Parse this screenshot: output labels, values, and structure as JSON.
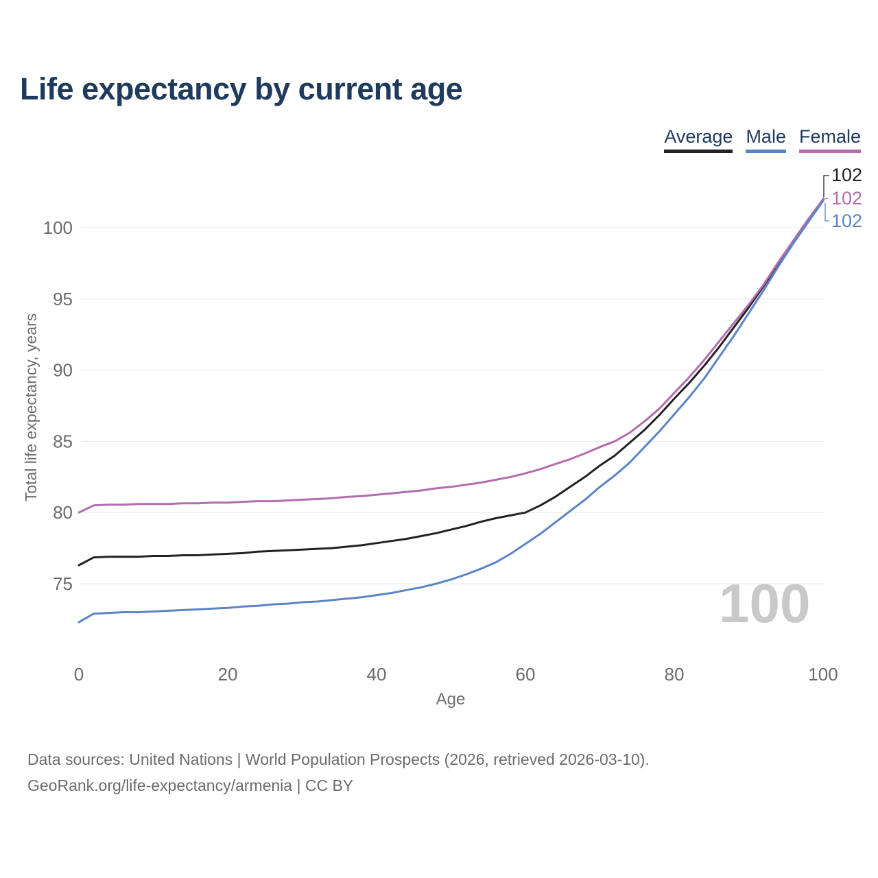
{
  "title": "Life expectancy by current age",
  "legend": [
    {
      "label": "Average",
      "color": "#222222"
    },
    {
      "label": "Male",
      "color": "#5b84c6"
    },
    {
      "label": "Female",
      "color": "#b36cae"
    }
  ],
  "colors": {
    "title_text": "#1e3a5c",
    "axis_text": "#6b6b6b",
    "gridline": "#e8e8e8",
    "watermark": "#c9c9c9"
  },
  "watermark": "100",
  "axes": {
    "x_title": "Age",
    "y_title": "Total life expectancy, years"
  },
  "footer": {
    "line1": "Data sources: United Nations | World Population Prospects (2026, retrieved 2026-03-10).",
    "line2": "GeoRank.org/life-expectancy/armenia | CC BY"
  },
  "chart_data": {
    "type": "line",
    "title": "Life expectancy by current age",
    "xlabel": "Age",
    "ylabel": "Total life expectancy, years",
    "xlim": [
      0,
      100
    ],
    "ylim": [
      71.5,
      104
    ],
    "x_ticks": [
      0,
      20,
      40,
      60,
      80,
      100
    ],
    "y_ticks": [
      75,
      80,
      85,
      90,
      95,
      100
    ],
    "grid": "horizontal",
    "legend_position": "top-right",
    "x": [
      0,
      2,
      4,
      6,
      8,
      10,
      12,
      14,
      16,
      18,
      20,
      22,
      24,
      26,
      28,
      30,
      32,
      34,
      36,
      38,
      40,
      42,
      44,
      46,
      48,
      50,
      52,
      54,
      56,
      58,
      60,
      62,
      64,
      66,
      68,
      70,
      72,
      74,
      76,
      78,
      80,
      82,
      84,
      86,
      88,
      90,
      92,
      94,
      96,
      98,
      100
    ],
    "series": [
      {
        "name": "Average",
        "color": "#222222",
        "end_label": "102",
        "label_row": 0,
        "values": [
          76.3,
          76.85,
          76.9,
          76.9,
          76.9,
          76.95,
          76.95,
          77.0,
          77.0,
          77.05,
          77.1,
          77.15,
          77.25,
          77.3,
          77.35,
          77.4,
          77.45,
          77.5,
          77.6,
          77.7,
          77.85,
          78.0,
          78.15,
          78.35,
          78.55,
          78.8,
          79.05,
          79.35,
          79.6,
          79.8,
          80.0,
          80.5,
          81.1,
          81.8,
          82.5,
          83.3,
          84.0,
          84.9,
          85.8,
          86.85,
          88.0,
          89.1,
          90.3,
          91.6,
          93.0,
          94.4,
          95.9,
          97.5,
          99.0,
          100.5,
          102.0
        ]
      },
      {
        "name": "Female",
        "color": "#b36cae",
        "end_label": "102",
        "label_row": 1,
        "values": [
          80.0,
          80.5,
          80.55,
          80.55,
          80.6,
          80.6,
          80.6,
          80.65,
          80.65,
          80.7,
          80.7,
          80.75,
          80.8,
          80.8,
          80.85,
          80.9,
          80.95,
          81.0,
          81.1,
          81.15,
          81.25,
          81.35,
          81.45,
          81.55,
          81.7,
          81.8,
          81.95,
          82.1,
          82.3,
          82.5,
          82.75,
          83.05,
          83.4,
          83.75,
          84.15,
          84.6,
          85.0,
          85.6,
          86.4,
          87.3,
          88.4,
          89.5,
          90.7,
          92.0,
          93.3,
          94.6,
          96.0,
          97.6,
          99.1,
          100.6,
          102.0
        ]
      },
      {
        "name": "Male",
        "color": "#5b84c6",
        "end_label": "102",
        "label_row": 2,
        "values": [
          72.3,
          72.9,
          72.95,
          73.0,
          73.0,
          73.05,
          73.1,
          73.15,
          73.2,
          73.25,
          73.3,
          73.4,
          73.45,
          73.55,
          73.6,
          73.7,
          73.75,
          73.85,
          73.95,
          74.05,
          74.2,
          74.35,
          74.55,
          74.75,
          75.0,
          75.3,
          75.65,
          76.05,
          76.5,
          77.1,
          77.8,
          78.5,
          79.3,
          80.1,
          80.9,
          81.8,
          82.6,
          83.5,
          84.6,
          85.7,
          86.9,
          88.1,
          89.4,
          90.9,
          92.4,
          94.0,
          95.6,
          97.3,
          98.9,
          100.4,
          101.9
        ]
      }
    ]
  }
}
